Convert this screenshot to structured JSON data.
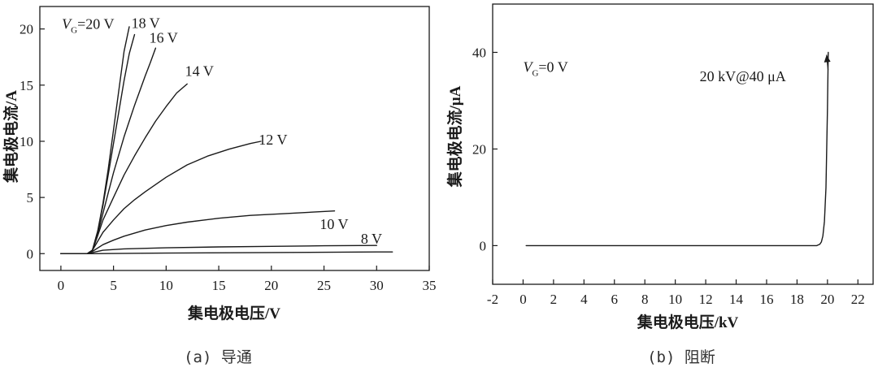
{
  "chart_data": [
    {
      "type": "line",
      "caption": "(a) 导通",
      "xlabel": "集电极电压/V",
      "ylabel": "集电极电流/A",
      "xlim": [
        -2,
        35
      ],
      "ylim": [
        -1.5,
        22
      ],
      "xticks": [
        0,
        5,
        10,
        15,
        20,
        25,
        30,
        35
      ],
      "yticks": [
        0,
        5,
        10,
        15,
        20
      ],
      "grid": false,
      "series": [
        {
          "name": "V_G=20 V",
          "x": [
            0,
            2.5,
            3,
            3.5,
            4,
            4.5,
            5,
            5.5,
            6,
            6.5
          ],
          "y": [
            0,
            0,
            0.3,
            2,
            4.5,
            7.5,
            11,
            14.5,
            18,
            20.2
          ]
        },
        {
          "name": "18 V",
          "x": [
            0,
            2.5,
            3,
            3.5,
            4,
            4.5,
            5,
            5.5,
            6,
            6.5,
            7.0
          ],
          "y": [
            0,
            0,
            0.3,
            2,
            4.3,
            7,
            9.8,
            12.6,
            15.4,
            17.8,
            19.5
          ]
        },
        {
          "name": "16 V",
          "x": [
            0,
            2.5,
            3,
            3.5,
            4,
            4.5,
            5,
            5.5,
            6,
            6.5,
            7,
            7.5,
            8,
            8.5,
            9.0
          ],
          "y": [
            0,
            0,
            0.3,
            1.8,
            3.6,
            5.4,
            7.2,
            8.8,
            10.4,
            11.8,
            13.2,
            14.5,
            15.8,
            17,
            18.3
          ]
        },
        {
          "name": "14 V",
          "x": [
            0,
            2.5,
            3,
            3.5,
            4,
            5,
            6,
            7,
            8,
            9,
            10,
            11,
            12.0
          ],
          "y": [
            0,
            0,
            0.3,
            1.6,
            3,
            5,
            7,
            8.7,
            10.3,
            11.8,
            13.1,
            14.3,
            15.1
          ]
        },
        {
          "name": "12 V",
          "x": [
            0,
            2.5,
            3,
            3.5,
            4,
            5,
            6,
            7,
            8,
            10,
            12,
            14,
            16,
            18,
            19.0
          ],
          "y": [
            0,
            0,
            0.3,
            1.1,
            1.9,
            3,
            4,
            4.8,
            5.5,
            6.8,
            7.9,
            8.7,
            9.3,
            9.8,
            10
          ]
        },
        {
          "name": "10 V",
          "x": [
            0,
            2.5,
            3,
            4,
            5,
            6,
            8,
            10,
            12,
            15,
            18,
            21,
            24,
            26.0
          ],
          "y": [
            0,
            0,
            0.2,
            0.8,
            1.2,
            1.55,
            2.1,
            2.5,
            2.8,
            3.15,
            3.4,
            3.55,
            3.7,
            3.8
          ]
        },
        {
          "name": "8 V",
          "x": [
            0,
            2.5,
            3,
            4,
            6,
            10,
            15,
            20,
            25,
            30.0
          ],
          "y": [
            0,
            0,
            0.1,
            0.3,
            0.42,
            0.52,
            0.6,
            0.65,
            0.7,
            0.73
          ]
        },
        {
          "name": "",
          "x": [
            0,
            3,
            10,
            20,
            30,
            31.5
          ],
          "y": [
            0,
            0,
            0.05,
            0.1,
            0.15,
            0.15
          ]
        }
      ],
      "annotations": [
        {
          "text": "=20 V",
          "prefix_v": "V",
          "prefix_sub": "G",
          "x": 0.1,
          "y": 20
        },
        {
          "text": "18 V",
          "x": 6.7,
          "y": 20.1
        },
        {
          "text": "16 V",
          "x": 8.4,
          "y": 18.8
        },
        {
          "text": "14 V",
          "x": 11.8,
          "y": 15.8
        },
        {
          "text": "12 V",
          "x": 18.8,
          "y": 9.7
        },
        {
          "text": "10 V",
          "x": 24.6,
          "y": 2.2
        },
        {
          "text": "8 V",
          "x": 28.5,
          "y": 0.9
        }
      ]
    },
    {
      "type": "line",
      "caption": "(b) 阻断",
      "xlabel": "集电极电压/kV",
      "ylabel": "集电极电流/μA",
      "xlim": [
        -2,
        23
      ],
      "ylim": [
        -8,
        50
      ],
      "xticks": [
        -2,
        0,
        2,
        4,
        6,
        8,
        10,
        12,
        14,
        16,
        18,
        20,
        22
      ],
      "yticks": [
        0,
        20,
        40
      ],
      "grid": false,
      "series": [
        {
          "name": "V_G=0 V",
          "x": [
            0.2,
            5,
            10,
            15,
            19.3,
            19.5,
            19.6,
            19.7,
            19.8,
            19.9,
            20.0,
            20.05
          ],
          "y": [
            0,
            0,
            0,
            0,
            0,
            0.3,
            0.8,
            2,
            5,
            12,
            28,
            40
          ]
        }
      ],
      "annotations": [
        {
          "text": "=0 V",
          "prefix_v": "V",
          "prefix_sub": "G",
          "x": 0.0,
          "y": 36
        },
        {
          "text": "20 kV@40 μA",
          "x": 11.6,
          "y": 34,
          "color": "#d0312d",
          "arrow_to": [
            20.05,
            40
          ]
        }
      ]
    }
  ],
  "colors": {
    "line": "#1a1a1a",
    "annotation_red": "#d0312d",
    "caption": "#333333"
  }
}
